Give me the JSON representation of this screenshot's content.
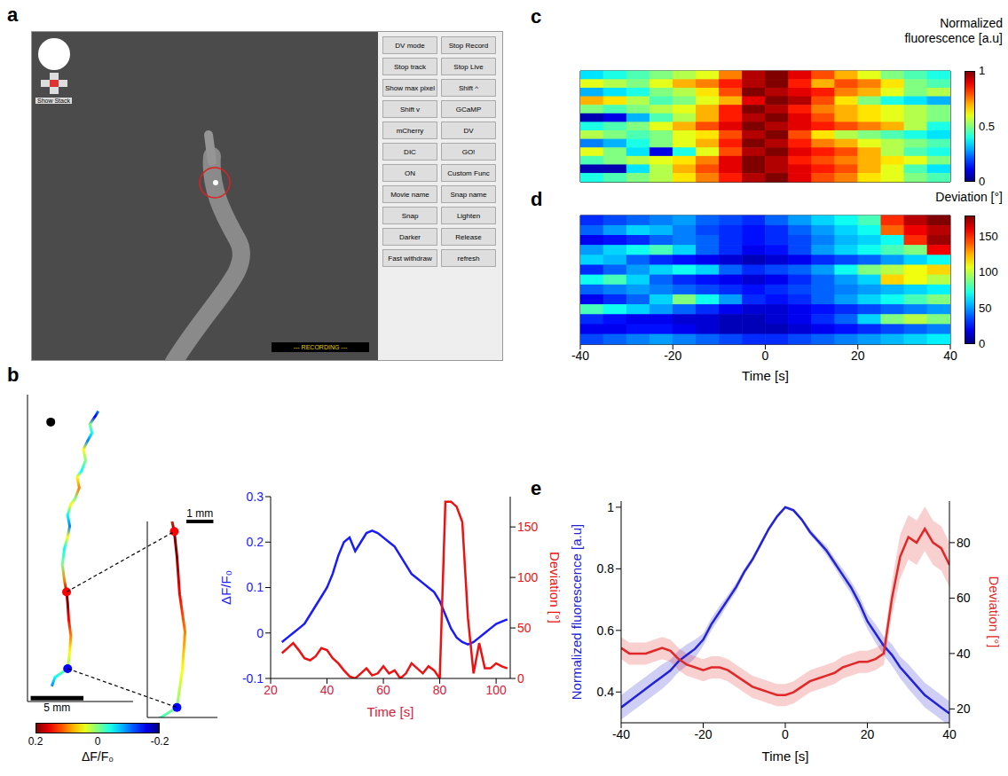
{
  "panel_a": {
    "label": "a",
    "buttons": [
      "DV mode",
      "Stop Record",
      "Stop track",
      "Stop Live",
      "Show max pixel",
      "Shift ^",
      "Shift v",
      "GCaMP",
      "mCherry",
      "DV",
      "DIC",
      "GO!",
      "ON",
      "Custom Func",
      "Movie name",
      "Snap name",
      "Snap",
      "Lighten",
      "Darker",
      "Release",
      "Fast withdraw",
      "refresh"
    ],
    "show_stack": "Show Stack",
    "recording": "--- RECORDING ---"
  },
  "chart_data": [
    {
      "panel": "b",
      "type": "path",
      "x": [
        -1.2,
        -0.9,
        0.3,
        0.5,
        0.6,
        0.4,
        0.3,
        0.2,
        0.0,
        -0.2,
        0.0,
        0.3,
        0.5,
        0.3,
        0.6,
        1.0,
        1.4,
        1.2,
        1.6,
        2.0,
        1.8,
        2.2,
        2.6,
        2.4,
        2.9,
        3.2
      ],
      "y": [
        -1.6,
        -0.8,
        0.0,
        1.5,
        3.0,
        4.5,
        6.0,
        7.0,
        8.0,
        9.5,
        11.0,
        12.0,
        13.0,
        14.0,
        15.0,
        15.5,
        16.5,
        17.5,
        18.0,
        19.0,
        20.0,
        20.8,
        21.5,
        22.3,
        23.0,
        23.5
      ],
      "values": [
        -0.1,
        -0.05,
        0.0,
        0.05,
        0.1,
        0.15,
        0.2,
        0.2,
        0.1,
        0.0,
        -0.05,
        0.05,
        -0.1,
        -0.05,
        0.05,
        0.0,
        0.1,
        0.05,
        -0.05,
        0.0,
        0.05,
        -0.1,
        -0.05,
        0.0,
        -0.15,
        -0.1
      ],
      "xlim": [
        -3.5,
        6.5
      ],
      "ylim": [
        -3,
        25
      ],
      "tick_labels": false,
      "markers": [
        {
          "x": -1.3,
          "y": 22.5,
          "color": "#000000"
        },
        {
          "x": 0.2,
          "y": 7.0,
          "color": "#ff0000"
        },
        {
          "x": 0.3,
          "y": 0.0,
          "color": "#0000ff"
        }
      ],
      "scale_bar": {
        "length": 5,
        "label": "5 mm"
      },
      "colorbar": {
        "range": [
          -0.2,
          0.2
        ],
        "ticks": [
          0.2,
          0,
          -0.2
        ],
        "label": "ΔF/F₀"
      },
      "inset": {
        "xlim": [
          -0.8,
          1.8
        ],
        "ylim": [
          -0.4,
          7.4
        ],
        "scale_bar": {
          "length": 1,
          "label": "1 mm"
        }
      }
    },
    {
      "panel": "b",
      "type": "line",
      "x": [
        24,
        26,
        28,
        30,
        32,
        34,
        36,
        38,
        40,
        42,
        44,
        46,
        48,
        50,
        52,
        54,
        56,
        58,
        60,
        62,
        64,
        66,
        68,
        70,
        72,
        74,
        76,
        78,
        80,
        82,
        84,
        86,
        88,
        90,
        92,
        94,
        96,
        98,
        100,
        102,
        104
      ],
      "xlim": [
        20,
        105
      ],
      "xticks": [
        20,
        40,
        60,
        80,
        100
      ],
      "xlabel": "Time [s]",
      "ylim": [
        -0.1,
        0.3
      ],
      "yticks": [
        -0.1,
        0,
        0.1,
        0.2,
        0.3
      ],
      "y2lim": [
        0,
        180
      ],
      "y2ticks": [
        0,
        50,
        100,
        150
      ],
      "series": [
        {
          "name": "ΔF/F₀",
          "color": "#1a1aff",
          "values": [
            -0.02,
            -0.01,
            0.0,
            0.01,
            0.02,
            0.04,
            0.06,
            0.08,
            0.1,
            0.13,
            0.17,
            0.2,
            0.21,
            0.18,
            0.2,
            0.22,
            0.225,
            0.22,
            0.21,
            0.2,
            0.19,
            0.17,
            0.15,
            0.13,
            0.12,
            0.11,
            0.1,
            0.09,
            0.07,
            0.04,
            0.01,
            -0.01,
            -0.02,
            -0.025,
            -0.02,
            -0.01,
            0.0,
            0.01,
            0.02,
            0.025,
            0.03
          ]
        },
        {
          "name": "Deviation [°]",
          "color": "#ee1111",
          "axis": "y2",
          "values": [
            25,
            30,
            35,
            28,
            20,
            18,
            22,
            30,
            28,
            20,
            15,
            8,
            2,
            0,
            5,
            10,
            3,
            5,
            12,
            5,
            8,
            0,
            5,
            15,
            10,
            5,
            12,
            8,
            0,
            175,
            175,
            170,
            155,
            60,
            5,
            35,
            10,
            10,
            15,
            12,
            10
          ]
        }
      ]
    },
    {
      "panel": "c",
      "type": "heatmap",
      "x": [
        -37.5,
        -32.5,
        -27.5,
        -22.5,
        -17.5,
        -12.5,
        -7.5,
        -2.5,
        2.5,
        7.5,
        12.5,
        17.5,
        22.5,
        27.5,
        32.5,
        37.5
      ],
      "xlim": [
        -40,
        40
      ],
      "xticks": [
        -40,
        -20,
        0,
        20,
        40
      ],
      "tick_labels": false,
      "cells": [
        [
          0.35,
          0.4,
          0.45,
          0.5,
          0.55,
          0.6,
          0.75,
          0.95,
          1.0,
          0.9,
          0.8,
          0.7,
          0.6,
          0.5,
          0.45,
          0.4
        ],
        [
          0.6,
          0.55,
          0.5,
          0.6,
          0.7,
          0.75,
          0.85,
          0.95,
          1.0,
          0.85,
          0.7,
          0.8,
          0.75,
          0.65,
          0.5,
          0.45
        ],
        [
          0.3,
          0.35,
          0.4,
          0.5,
          0.55,
          0.65,
          0.8,
          1.0,
          0.95,
          0.9,
          0.85,
          0.75,
          0.7,
          0.6,
          0.5,
          0.55
        ],
        [
          0.7,
          0.65,
          0.55,
          0.45,
          0.5,
          0.6,
          0.7,
          0.9,
          1.0,
          0.95,
          0.8,
          0.65,
          0.5,
          0.4,
          0.35,
          0.3
        ],
        [
          0.5,
          0.45,
          0.5,
          0.55,
          0.6,
          0.7,
          0.85,
          1.0,
          0.95,
          0.85,
          0.75,
          0.7,
          0.65,
          0.6,
          0.55,
          0.5
        ],
        [
          0.05,
          0.1,
          0.3,
          0.45,
          0.55,
          0.7,
          0.85,
          0.95,
          1.0,
          0.9,
          0.8,
          0.7,
          0.65,
          0.6,
          0.55,
          0.5
        ],
        [
          0.4,
          0.45,
          0.5,
          0.6,
          0.7,
          0.8,
          0.9,
          1.0,
          0.95,
          0.9,
          0.85,
          0.8,
          0.75,
          0.7,
          0.55,
          0.4
        ],
        [
          0.55,
          0.5,
          0.45,
          0.5,
          0.6,
          0.65,
          0.8,
          0.95,
          1.0,
          0.8,
          0.65,
          0.55,
          0.5,
          0.45,
          0.4,
          0.35
        ],
        [
          0.25,
          0.3,
          0.4,
          0.5,
          0.6,
          0.7,
          0.85,
          1.0,
          0.95,
          0.85,
          0.75,
          0.7,
          0.6,
          0.55,
          0.5,
          0.45
        ],
        [
          0.6,
          0.5,
          0.35,
          0.1,
          0.4,
          0.6,
          0.8,
          0.95,
          1.0,
          0.9,
          0.85,
          0.8,
          0.7,
          0.55,
          0.45,
          0.4
        ],
        [
          0.45,
          0.5,
          0.55,
          0.6,
          0.65,
          0.75,
          0.9,
          1.0,
          0.95,
          0.85,
          0.8,
          0.75,
          0.7,
          0.65,
          0.6,
          0.5
        ],
        [
          0.05,
          0.05,
          0.35,
          0.55,
          0.7,
          0.8,
          0.9,
          1.0,
          0.95,
          0.9,
          0.85,
          0.8,
          0.7,
          0.6,
          0.45,
          0.35
        ],
        [
          0.4,
          0.45,
          0.5,
          0.55,
          0.65,
          0.75,
          0.85,
          0.95,
          1.0,
          0.9,
          0.8,
          0.75,
          0.65,
          0.6,
          0.5,
          0.45
        ]
      ],
      "colorbar": {
        "range": [
          0,
          1
        ],
        "ticks": [
          0,
          0.5,
          1
        ],
        "label": "Normalized fluorescence [a.u]"
      }
    },
    {
      "panel": "d",
      "type": "heatmap",
      "x": [
        -37.5,
        -32.5,
        -27.5,
        -22.5,
        -17.5,
        -12.5,
        -7.5,
        -2.5,
        2.5,
        7.5,
        12.5,
        17.5,
        22.5,
        27.5,
        32.5,
        37.5
      ],
      "xlim": [
        -40,
        40
      ],
      "xticks": [
        -40,
        -20,
        0,
        20,
        40
      ],
      "xlabel": "Time [s]",
      "tick_labels": "x",
      "cells": [
        [
          30,
          35,
          40,
          45,
          50,
          40,
          35,
          30,
          40,
          50,
          60,
          70,
          80,
          150,
          170,
          180
        ],
        [
          40,
          50,
          60,
          55,
          45,
          35,
          30,
          25,
          30,
          40,
          50,
          60,
          70,
          140,
          160,
          170
        ],
        [
          20,
          25,
          30,
          40,
          45,
          40,
          30,
          25,
          30,
          35,
          45,
          55,
          60,
          70,
          150,
          175
        ],
        [
          50,
          60,
          70,
          80,
          60,
          40,
          30,
          20,
          25,
          35,
          50,
          60,
          70,
          80,
          90,
          160
        ],
        [
          60,
          55,
          40,
          30,
          25,
          20,
          15,
          10,
          15,
          20,
          30,
          35,
          40,
          50,
          60,
          70
        ],
        [
          30,
          40,
          50,
          60,
          70,
          60,
          40,
          30,
          35,
          40,
          50,
          70,
          90,
          100,
          110,
          120
        ],
        [
          70,
          80,
          60,
          40,
          30,
          25,
          20,
          15,
          20,
          30,
          40,
          50,
          60,
          120,
          110,
          100
        ],
        [
          40,
          45,
          50,
          45,
          40,
          35,
          30,
          25,
          30,
          35,
          40,
          45,
          50,
          55,
          60,
          65
        ],
        [
          20,
          30,
          40,
          60,
          90,
          70,
          50,
          30,
          25,
          30,
          40,
          50,
          60,
          70,
          80,
          90
        ],
        [
          80,
          70,
          60,
          50,
          40,
          30,
          20,
          15,
          15,
          20,
          25,
          30,
          35,
          40,
          45,
          50
        ],
        [
          30,
          25,
          20,
          20,
          15,
          15,
          10,
          10,
          15,
          20,
          30,
          40,
          60,
          90,
          100,
          90
        ],
        [
          20,
          20,
          25,
          25,
          20,
          15,
          10,
          10,
          10,
          15,
          20,
          25,
          30,
          35,
          40,
          45
        ],
        [
          35,
          40,
          45,
          50,
          45,
          40,
          35,
          30,
          30,
          35,
          40,
          45,
          50,
          55,
          60,
          65
        ]
      ],
      "colorbar": {
        "range": [
          0,
          180
        ],
        "ticks": [
          0,
          50,
          100,
          150
        ],
        "label": "Deviation [°]"
      }
    },
    {
      "panel": "e",
      "type": "line",
      "x": [
        -40,
        -38,
        -36,
        -34,
        -32,
        -30,
        -28,
        -26,
        -24,
        -22,
        -20,
        -18,
        -16,
        -14,
        -12,
        -10,
        -8,
        -6,
        -4,
        -2,
        0,
        2,
        4,
        6,
        8,
        10,
        12,
        14,
        16,
        18,
        20,
        22,
        24,
        26,
        28,
        30,
        32,
        34,
        36,
        38,
        40
      ],
      "xlim": [
        -40,
        40
      ],
      "xticks": [
        -40,
        -20,
        0,
        20,
        40
      ],
      "xlabel": "Time [s]",
      "ylim": [
        0.3,
        1.02
      ],
      "yticks": [
        0.4,
        0.6,
        0.8,
        1
      ],
      "y2lim": [
        15,
        95
      ],
      "y2ticks": [
        20,
        40,
        60,
        80
      ],
      "series": [
        {
          "name": "Normalized fluorescence [a.u]",
          "color": "#2323d6",
          "values": [
            0.35,
            0.37,
            0.39,
            0.41,
            0.43,
            0.45,
            0.47,
            0.5,
            0.52,
            0.54,
            0.57,
            0.62,
            0.66,
            0.7,
            0.74,
            0.79,
            0.83,
            0.88,
            0.93,
            0.97,
            1.0,
            0.99,
            0.96,
            0.92,
            0.89,
            0.86,
            0.82,
            0.78,
            0.74,
            0.69,
            0.63,
            0.59,
            0.55,
            0.52,
            0.48,
            0.45,
            0.42,
            0.39,
            0.37,
            0.35,
            0.33
          ],
          "error": [
            0.04,
            0.04,
            0.04,
            0.04,
            0.04,
            0.04,
            0.035,
            0.035,
            0.035,
            0.03,
            0.02,
            0.02,
            0.02,
            0.015,
            0.015,
            0.01,
            0.01,
            0.01,
            0.005,
            0.005,
            0.005,
            0.005,
            0.005,
            0.01,
            0.01,
            0.015,
            0.015,
            0.02,
            0.02,
            0.025,
            0.025,
            0.03,
            0.03,
            0.035,
            0.035,
            0.04,
            0.04,
            0.04,
            0.04,
            0.04,
            0.04
          ]
        },
        {
          "name": "Deviation [°]",
          "color": "#e02828",
          "axis": "y2",
          "values": [
            42,
            40,
            40,
            40,
            41,
            42,
            41,
            38,
            36,
            35,
            34,
            35,
            35,
            34,
            32,
            30,
            28,
            27,
            26,
            25,
            25,
            26,
            28,
            30,
            31,
            32,
            33,
            35,
            36,
            37,
            37,
            38,
            40,
            60,
            75,
            82,
            80,
            85,
            80,
            78,
            72
          ],
          "error": [
            4,
            4,
            4,
            4,
            4,
            4,
            4,
            4,
            4,
            4,
            4,
            4,
            4,
            4,
            4,
            4,
            4,
            4,
            4,
            4,
            4,
            4,
            4,
            4,
            4,
            4,
            4,
            4,
            4,
            4,
            4,
            4,
            4,
            6,
            8,
            8,
            8,
            8,
            8,
            8,
            8
          ]
        }
      ]
    }
  ]
}
